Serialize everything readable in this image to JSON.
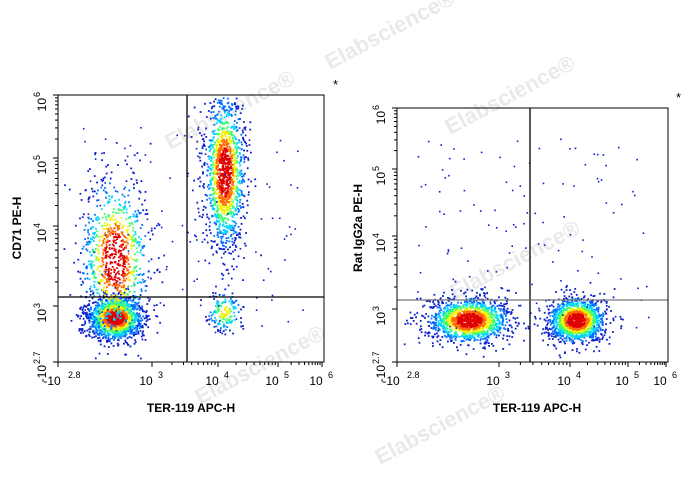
{
  "chart_data": [
    {
      "type": "scatter",
      "xlabel": "TER-119 APC-H",
      "ylabel": "CD71 PE-H",
      "asterisk": "*",
      "x_scale": "log",
      "y_scale": "log",
      "xlim": [
        "-10^2.8",
        "10^6"
      ],
      "ylim": [
        "-10^2.7",
        "10^6"
      ],
      "x_ticks": [
        {
          "base": "-10",
          "exp": "2.8"
        },
        {
          "base": "10",
          "exp": "3"
        },
        {
          "base": "10",
          "exp": "4"
        },
        {
          "base": "10",
          "exp": "5"
        },
        {
          "base": "10",
          "exp": "6"
        }
      ],
      "y_ticks": [
        {
          "base": "-10",
          "exp": "2.7"
        },
        {
          "base": "10",
          "exp": "3"
        },
        {
          "base": "10",
          "exp": "4"
        },
        {
          "base": "10",
          "exp": "5"
        },
        {
          "base": "10",
          "exp": "6"
        }
      ],
      "gate": {
        "x": "10^3.5",
        "y": "10^3.0"
      },
      "populations": [
        {
          "x": "10^2.6",
          "y": "10^2.8",
          "density": "high"
        },
        {
          "x": "10^2.6",
          "y": "10^3.6",
          "density": "medium"
        },
        {
          "x": "10^4.1",
          "y": "10^4.8",
          "density": "high"
        },
        {
          "x": "10^4.1",
          "y": "10^2.9",
          "density": "low"
        }
      ]
    },
    {
      "type": "scatter",
      "xlabel": "TER-119 APC-H",
      "ylabel": "Rat IgG2a PE-H",
      "asterisk": "*",
      "x_scale": "log",
      "y_scale": "log",
      "xlim": [
        "-10^2.8",
        "10^6"
      ],
      "ylim": [
        "-10^2.7",
        "10^6"
      ],
      "x_ticks": [
        {
          "base": "-10",
          "exp": "2.8"
        },
        {
          "base": "10",
          "exp": "3"
        },
        {
          "base": "10",
          "exp": "4"
        },
        {
          "base": "10",
          "exp": "5"
        },
        {
          "base": "10",
          "exp": "6"
        }
      ],
      "y_ticks": [
        {
          "base": "-10",
          "exp": "2.7"
        },
        {
          "base": "10",
          "exp": "3"
        },
        {
          "base": "10",
          "exp": "4"
        },
        {
          "base": "10",
          "exp": "5"
        },
        {
          "base": "10",
          "exp": "6"
        }
      ],
      "gate": {
        "x": "10^3.5",
        "y": "10^3.0"
      },
      "populations": [
        {
          "x": "10^2.7",
          "y": "10^2.8",
          "density": "high"
        },
        {
          "x": "10^4.1",
          "y": "10^2.8",
          "density": "high"
        }
      ]
    }
  ],
  "watermark": {
    "text": "Elabscience",
    "mark": "®"
  },
  "colors": {
    "density": [
      "#0a1ecc",
      "#0070ff",
      "#00d4ff",
      "#3cff6a",
      "#f2f200",
      "#ff6a00",
      "#e00000"
    ],
    "gate_line_left": "#000000",
    "gate_line_right": "#777777"
  }
}
